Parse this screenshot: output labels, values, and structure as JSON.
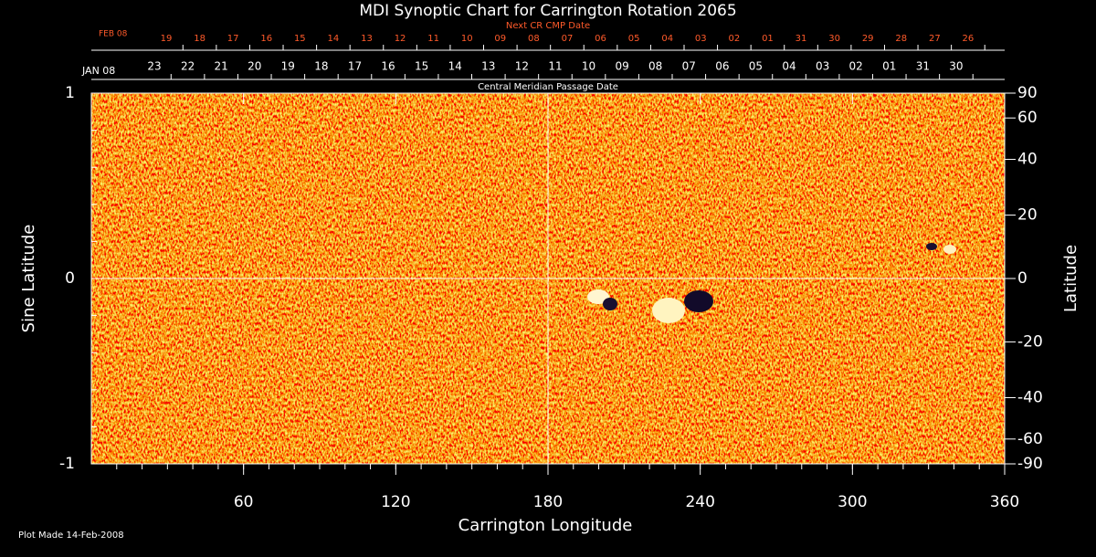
{
  "chart_data": {
    "type": "synoptic-map",
    "title": "MDI Synoptic Chart for Carrington Rotation 2065",
    "xlabel": "Carrington Longitude",
    "ylabel": "Sine Latitude",
    "y2label": "Latitude",
    "xlim": [
      0,
      360
    ],
    "xticks": [
      60,
      120,
      180,
      240,
      300,
      360
    ],
    "ylim": [
      -1,
      1
    ],
    "yticks": [
      -1,
      0,
      1
    ],
    "y2lim": [
      -90,
      90
    ],
    "y2ticks": [
      90,
      60,
      40,
      20,
      0,
      -20,
      -40,
      -60,
      -90
    ],
    "top_axes": [
      {
        "label": "Next CR CMP Date",
        "month": "FEB 08",
        "color": "#ff5a2a",
        "dates": [
          "19",
          "18",
          "17",
          "16",
          "15",
          "14",
          "13",
          "12",
          "11",
          "10",
          "09",
          "08",
          "07",
          "06",
          "05",
          "04",
          "03",
          "02",
          "01",
          "31",
          "30",
          "29",
          "28",
          "27",
          "26"
        ]
      },
      {
        "label": "Central Meridian Passage Date",
        "month": "JAN 08",
        "color": "#ffffff",
        "dates": [
          "23",
          "22",
          "21",
          "20",
          "19",
          "18",
          "17",
          "16",
          "15",
          "14",
          "13",
          "12",
          "11",
          "10",
          "09",
          "08",
          "07",
          "06",
          "05",
          "04",
          "03",
          "02",
          "01",
          "31",
          "30"
        ]
      }
    ],
    "note": "Plot Made 14-Feb-2008"
  }
}
